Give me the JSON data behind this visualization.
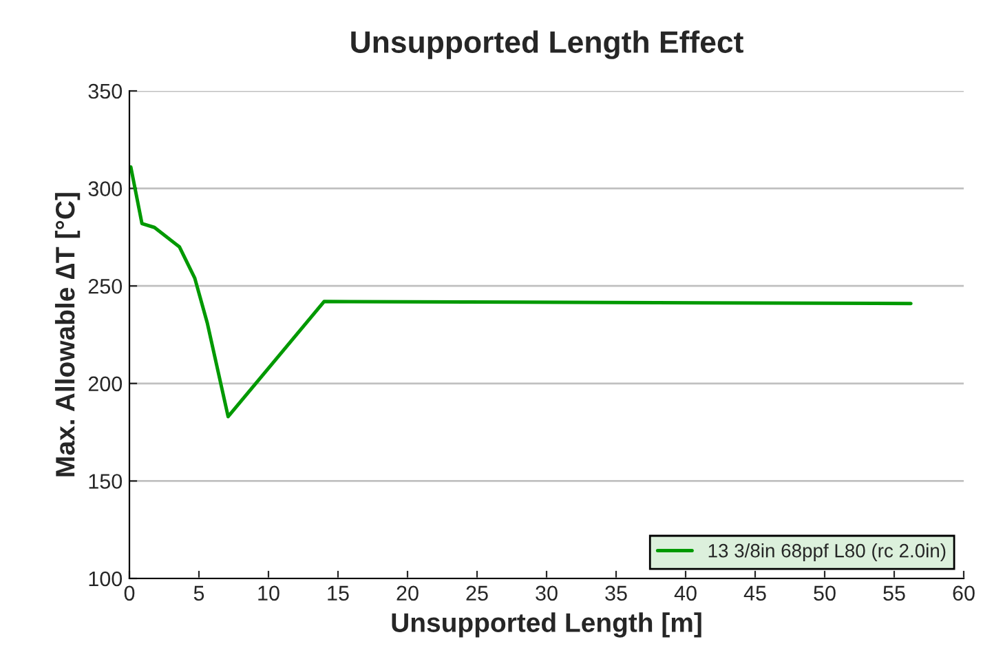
{
  "chart_data": {
    "type": "line",
    "title": "Unsupported Length Effect",
    "xlabel": "Unsupported Length [m]",
    "ylabel": "Max. Allowable ∆T [°C]",
    "series": [
      {
        "name": "13 3/8in 68ppf L80 (rc 2.0in)",
        "color": "#009900",
        "x": [
          0.1,
          0.9,
          1.8,
          3.6,
          4.7,
          5.6,
          7.1,
          14.0,
          56.2
        ],
        "values": [
          311,
          282,
          280,
          270,
          254,
          231,
          183,
          242,
          241
        ]
      }
    ],
    "xlim": [
      0,
      60
    ],
    "xticks": [
      0,
      5,
      10,
      15,
      20,
      25,
      30,
      35,
      40,
      45,
      50,
      55,
      60
    ],
    "ylim": [
      100,
      350
    ],
    "yticks": [
      100,
      150,
      200,
      250,
      300,
      350
    ],
    "grid": "y",
    "legend": "bottom right",
    "marker": "none",
    "line_style": "solid"
  }
}
